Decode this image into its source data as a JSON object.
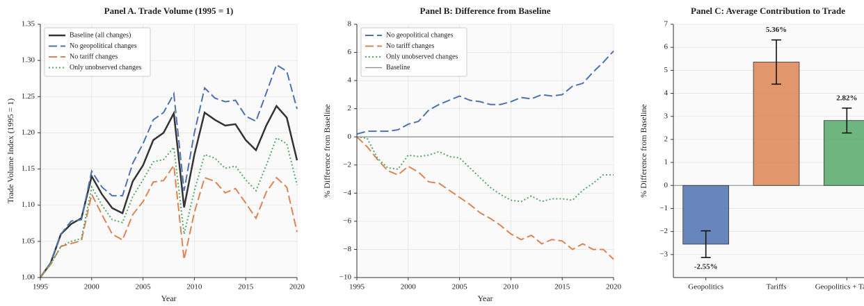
{
  "chart_data": [
    {
      "type": "line",
      "title": "Panel A. Trade Volume (1995 = 1)",
      "xlabel": "Year",
      "ylabel": "Trade Volume Index (1995 = 1)",
      "x": [
        1995,
        1996,
        1997,
        1998,
        1999,
        2000,
        2001,
        2002,
        2003,
        2004,
        2005,
        2006,
        2007,
        2008,
        2009,
        2010,
        2011,
        2012,
        2013,
        2014,
        2015,
        2016,
        2017,
        2018,
        2019,
        2020
      ],
      "series": [
        {
          "name": "Baseline (all changes)",
          "color": "#333333",
          "linestyle": "solid",
          "linewidth": 2.5,
          "values": [
            1.0,
            1.02,
            1.06,
            1.074,
            1.082,
            1.14,
            1.115,
            1.096,
            1.089,
            1.133,
            1.155,
            1.19,
            1.2,
            1.227,
            1.097,
            1.17,
            1.228,
            1.218,
            1.21,
            1.212,
            1.19,
            1.176,
            1.21,
            1.237,
            1.221,
            1.162
          ]
        },
        {
          "name": "No geopolitical changes",
          "color": "#4c72b0",
          "linestyle": "dashed",
          "linewidth": 2,
          "values": [
            1.0,
            1.02,
            1.06,
            1.078,
            1.08,
            1.147,
            1.125,
            1.113,
            1.113,
            1.158,
            1.185,
            1.218,
            1.228,
            1.254,
            1.12,
            1.2,
            1.262,
            1.248,
            1.243,
            1.245,
            1.223,
            1.216,
            1.255,
            1.294,
            1.285,
            1.233
          ]
        },
        {
          "name": "No tariff changes",
          "color": "#dd8452",
          "linestyle": "dashed",
          "linewidth": 2,
          "values": [
            1.0,
            1.018,
            1.043,
            1.047,
            1.051,
            1.115,
            1.087,
            1.06,
            1.052,
            1.087,
            1.105,
            1.132,
            1.134,
            1.155,
            1.025,
            1.09,
            1.138,
            1.133,
            1.117,
            1.123,
            1.103,
            1.082,
            1.118,
            1.138,
            1.125,
            1.063
          ]
        },
        {
          "name": "Only unobserved changes",
          "color": "#55a868",
          "linestyle": "dotted",
          "linewidth": 2,
          "values": [
            1.0,
            1.018,
            1.043,
            1.05,
            1.054,
            1.125,
            1.1,
            1.08,
            1.076,
            1.112,
            1.135,
            1.16,
            1.163,
            1.18,
            1.06,
            1.12,
            1.17,
            1.165,
            1.151,
            1.154,
            1.135,
            1.12,
            1.155,
            1.193,
            1.185,
            1.128
          ]
        }
      ],
      "xlim": [
        1995,
        2020
      ],
      "xticks": [
        1995,
        2000,
        2005,
        2010,
        2015,
        2020
      ],
      "ylim": [
        1.0,
        1.35
      ],
      "yticks": [
        {
          "value": 1.0,
          "label": "1.00"
        },
        1.05,
        {
          "value": 1.1,
          "label": "1.10"
        },
        1.15,
        {
          "value": 1.2,
          "label": "1.20"
        },
        1.25,
        {
          "value": 1.3,
          "label": "1.30"
        },
        1.35
      ],
      "grid": true,
      "legend": "upper left"
    },
    {
      "type": "line",
      "title": "Panel B: Difference from Baseline",
      "xlabel": "Year",
      "ylabel": "% Difference from Baseline",
      "x": [
        1995,
        1996,
        1997,
        1998,
        1999,
        2000,
        2001,
        2002,
        2003,
        2004,
        2005,
        2006,
        2007,
        2008,
        2009,
        2010,
        2011,
        2012,
        2013,
        2014,
        2015,
        2016,
        2017,
        2018,
        2019,
        2020
      ],
      "series": [
        {
          "name": "No geopolitical changes",
          "color": "#4c72b0",
          "linestyle": "dashed",
          "linewidth": 2,
          "values": [
            0.2,
            0.4,
            0.4,
            0.4,
            0.5,
            0.9,
            1.1,
            1.9,
            2.3,
            2.6,
            2.9,
            2.6,
            2.5,
            2.3,
            2.3,
            2.5,
            2.8,
            2.7,
            3.0,
            2.9,
            3.0,
            3.6,
            3.8,
            4.6,
            5.3,
            6.1
          ]
        },
        {
          "name": "No tariff changes",
          "color": "#dd8452",
          "linestyle": "dashed",
          "linewidth": 2,
          "values": [
            0,
            -0.7,
            -1.6,
            -2.4,
            -2.7,
            -2.1,
            -2.5,
            -3.2,
            -3.3,
            -3.8,
            -4.3,
            -4.8,
            -5.4,
            -5.8,
            -6.3,
            -6.9,
            -7.3,
            -7.0,
            -7.6,
            -7.3,
            -7.4,
            -8.0,
            -7.6,
            -8.0,
            -8.0,
            -8.7
          ]
        },
        {
          "name": "Only unobserved changes",
          "color": "#55a868",
          "linestyle": "dotted",
          "linewidth": 2,
          "values": [
            0,
            -0.1,
            -1.5,
            -2.2,
            -2.3,
            -1.3,
            -1.4,
            -1.3,
            -1.05,
            -1.4,
            -1.5,
            -2.2,
            -2.9,
            -3.6,
            -4.1,
            -4.5,
            -4.6,
            -4.2,
            -4.6,
            -4.4,
            -4.4,
            -4.5,
            -3.8,
            -3.3,
            -2.7,
            -2.7
          ]
        },
        {
          "name": "Baseline",
          "color": "#888888",
          "linestyle": "solid",
          "linewidth": 1.2,
          "values": [
            0,
            0,
            0,
            0,
            0,
            0,
            0,
            0,
            0,
            0,
            0,
            0,
            0,
            0,
            0,
            0,
            0,
            0,
            0,
            0,
            0,
            0,
            0,
            0,
            0,
            0
          ]
        }
      ],
      "xlim": [
        1995,
        2020
      ],
      "xticks": [
        1995,
        2000,
        2005,
        2010,
        2015,
        2020
      ],
      "ylim": [
        -10,
        8
      ],
      "yticks": [
        {
          "value": -10,
          "label": "−10"
        },
        {
          "value": -8,
          "label": "−8"
        },
        {
          "value": -6,
          "label": "−6"
        },
        {
          "value": -4,
          "label": "−4"
        },
        {
          "value": -2,
          "label": "−2"
        },
        0,
        2,
        4,
        6,
        8
      ],
      "grid": true,
      "legend": "upper left"
    },
    {
      "type": "bar",
      "title": "Panel C: Average Contribution to Trade",
      "ylabel": "% Difference from Baseline",
      "categories": [
        "Geopolitics",
        "Tariffs",
        "Geopolitics + Tariffs"
      ],
      "values": [
        -2.55,
        5.36,
        2.82
      ],
      "errors": [
        0.58,
        0.96,
        0.54
      ],
      "value_labels": [
        "-2.55%",
        "5.36%",
        "2.82%"
      ],
      "colors": [
        "#4c72b0",
        "#dd8452",
        "#55a868"
      ],
      "ylim": [
        -4,
        7
      ],
      "yticks": [
        {
          "value": -3,
          "label": "−3"
        },
        {
          "value": -2,
          "label": "−2"
        },
        {
          "value": -1,
          "label": "−1"
        },
        0,
        1,
        2,
        3,
        4,
        5,
        6,
        7
      ],
      "grid": true
    }
  ]
}
